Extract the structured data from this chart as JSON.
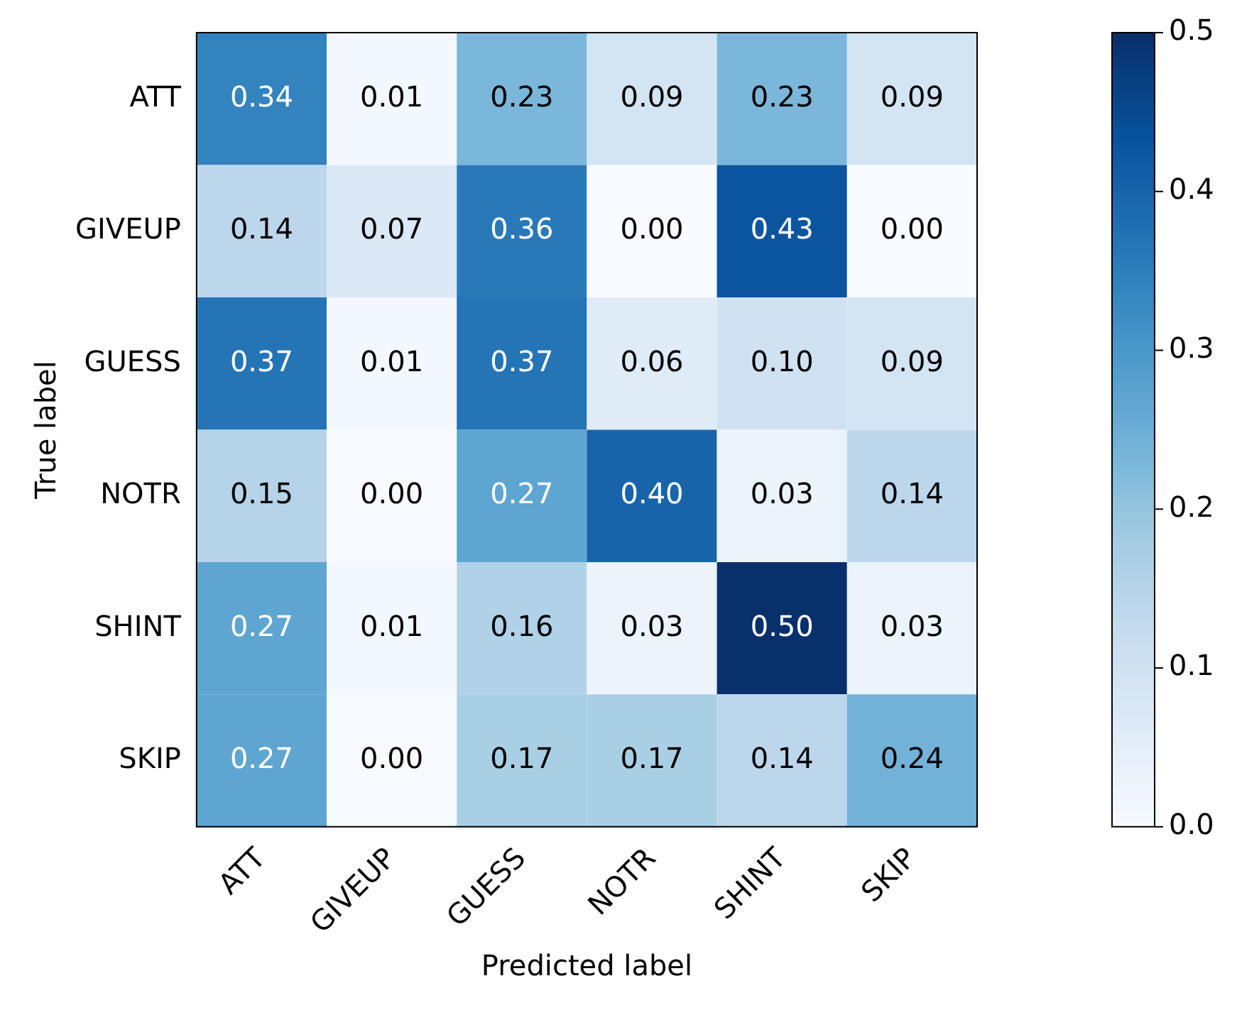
{
  "chart_data": {
    "type": "heatmap",
    "xlabel": "Predicted label",
    "ylabel": "True label",
    "categories": [
      "ATT",
      "GIVEUP",
      "GUESS",
      "NOTR",
      "SHINT",
      "SKIP"
    ],
    "y_categories": [
      "ATT",
      "GIVEUP",
      "GUESS",
      "NOTR",
      "SHINT",
      "SKIP"
    ],
    "cells": [
      [
        0.34,
        0.01,
        0.23,
        0.09,
        0.23,
        0.09
      ],
      [
        0.14,
        0.07,
        0.36,
        0.0,
        0.43,
        0.0
      ],
      [
        0.37,
        0.01,
        0.37,
        0.06,
        0.1,
        0.09
      ],
      [
        0.15,
        0.0,
        0.27,
        0.4,
        0.03,
        0.14
      ],
      [
        0.27,
        0.01,
        0.16,
        0.03,
        0.5,
        0.03
      ],
      [
        0.27,
        0.0,
        0.17,
        0.17,
        0.14,
        0.24
      ]
    ],
    "cell_labels": [
      [
        "0.34",
        "0.01",
        "0.23",
        "0.09",
        "0.23",
        "0.09"
      ],
      [
        "0.14",
        "0.07",
        "0.36",
        "0.00",
        "0.43",
        "0.00"
      ],
      [
        "0.37",
        "0.01",
        "0.37",
        "0.06",
        "0.10",
        "0.09"
      ],
      [
        "0.15",
        "0.00",
        "0.27",
        "0.40",
        "0.03",
        "0.14"
      ],
      [
        "0.27",
        "0.01",
        "0.16",
        "0.03",
        "0.50",
        "0.03"
      ],
      [
        "0.27",
        "0.00",
        "0.17",
        "0.17",
        "0.14",
        "0.24"
      ]
    ],
    "clim": [
      0,
      0.5
    ],
    "cticks": [
      {
        "value": 0,
        "label": "0.0"
      },
      0.1,
      0.2,
      0.3,
      0.4,
      0.5
    ]
  }
}
